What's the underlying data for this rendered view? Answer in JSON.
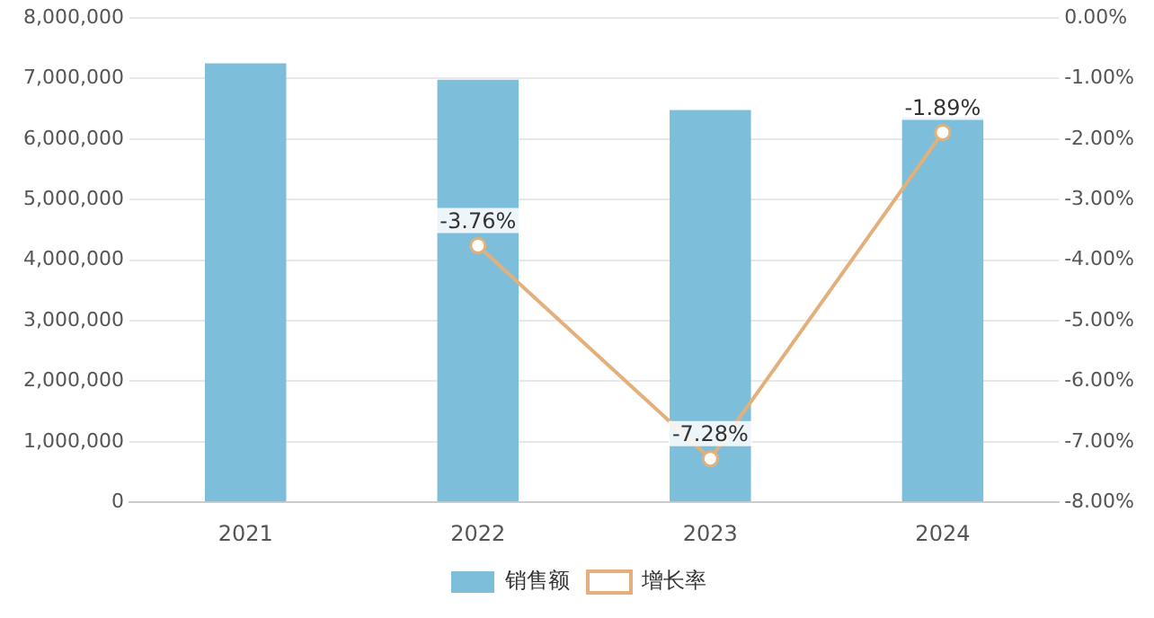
{
  "chart_data": {
    "type": "bar",
    "categories": [
      "2021",
      "2022",
      "2023",
      "2024"
    ],
    "series": [
      {
        "name": "销售额",
        "color": "#7dbfdb",
        "values": [
          7250000,
          6980000,
          6480000,
          6360000
        ]
      },
      {
        "name": "增长率",
        "type": "line",
        "axis": "y2",
        "color": "#e3b07c",
        "values": [
          null,
          -3.76,
          -7.28,
          -1.89
        ],
        "value_labels": [
          null,
          "-3.76%",
          "-7.28%",
          "-1.89%"
        ]
      }
    ],
    "ylim": [
      0,
      8000000
    ],
    "yticks": [
      0,
      {
        "value": 1000000,
        "label": "1,000,000"
      },
      {
        "value": 2000000,
        "label": "2,000,000"
      },
      {
        "value": 3000000,
        "label": "3,000,000"
      },
      {
        "value": 4000000,
        "label": "4,000,000"
      },
      {
        "value": 5000000,
        "label": "5,000,000"
      },
      {
        "value": 6000000,
        "label": "6,000,000"
      },
      {
        "value": 7000000,
        "label": "7,000,000"
      },
      {
        "value": 8000000,
        "label": "8,000,000"
      }
    ],
    "y2lim": [
      -8,
      0
    ],
    "y2ticks": [
      {
        "value": -8,
        "label": "-8.00%"
      },
      {
        "value": -7,
        "label": "-7.00%"
      },
      {
        "value": -6,
        "label": "-6.00%"
      },
      {
        "value": -5,
        "label": "-5.00%"
      },
      {
        "value": -4,
        "label": "-4.00%"
      },
      {
        "value": -3,
        "label": "-3.00%"
      },
      {
        "value": -2,
        "label": "-2.00%"
      },
      {
        "value": -1,
        "label": "-1.00%"
      },
      {
        "value": 0,
        "label": "0.00%"
      }
    ],
    "grid": "y",
    "legend": "bottom",
    "marker": "circle"
  }
}
